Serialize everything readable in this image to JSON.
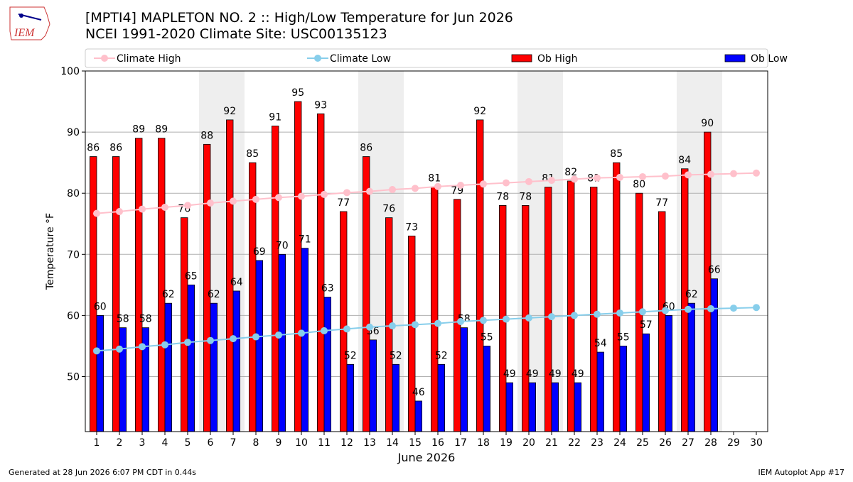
{
  "chart_data": {
    "type": "bar_line",
    "title": "[MPTI4] MAPLETON NO. 2 :: High/Low Temperature for Jun 2026",
    "subtitle": "NCEI 1991-2020 Climate Site: USC00135123",
    "logo_text": "IEM",
    "x_label": "June 2026",
    "y_label": "Temperature °F",
    "footer_left": "Generated at 28 Jun 2026 6:07 PM CDT in 0.44s",
    "footer_right": "IEM Autoplot App #17",
    "x": [
      1,
      2,
      3,
      4,
      5,
      6,
      7,
      8,
      9,
      10,
      11,
      12,
      13,
      14,
      15,
      16,
      17,
      18,
      19,
      20,
      21,
      22,
      23,
      24,
      25,
      26,
      27,
      28,
      29,
      30
    ],
    "xlim": [
      0.5,
      30.5
    ],
    "xticks": [
      1,
      2,
      3,
      4,
      5,
      6,
      7,
      8,
      9,
      10,
      11,
      12,
      13,
      14,
      15,
      16,
      17,
      18,
      19,
      20,
      21,
      22,
      23,
      24,
      25,
      26,
      27,
      28,
      29,
      30
    ],
    "ylim": [
      41,
      100
    ],
    "yticks": [
      50,
      60,
      70,
      80,
      90,
      100
    ],
    "grid": true,
    "weekend_shading": [
      [
        6,
        7
      ],
      [
        13,
        14
      ],
      [
        20,
        21
      ],
      [
        27,
        28
      ]
    ],
    "series": [
      {
        "name": "Climate High",
        "kind": "line",
        "color": "#ffc0cb",
        "values": [
          76.7,
          77.0,
          77.4,
          77.7,
          78.0,
          78.4,
          78.7,
          79.0,
          79.3,
          79.5,
          79.8,
          80.1,
          80.3,
          80.6,
          80.8,
          81.1,
          81.3,
          81.5,
          81.7,
          81.9,
          82.1,
          82.3,
          82.5,
          82.6,
          82.7,
          82.8,
          83.0,
          83.1,
          83.2,
          83.3
        ]
      },
      {
        "name": "Climate Low",
        "kind": "line",
        "color": "#87ceeb",
        "values": [
          54.2,
          54.5,
          54.9,
          55.2,
          55.6,
          55.9,
          56.2,
          56.5,
          56.8,
          57.1,
          57.5,
          57.8,
          58.1,
          58.3,
          58.5,
          58.7,
          59.0,
          59.2,
          59.4,
          59.6,
          59.8,
          60.0,
          60.2,
          60.4,
          60.6,
          60.8,
          61.0,
          61.1,
          61.2,
          61.3
        ]
      },
      {
        "name": "Ob High",
        "kind": "bar",
        "color": "#ff0000",
        "values": [
          86,
          86,
          89,
          89,
          76,
          88,
          92,
          85,
          91,
          95,
          93,
          77,
          86,
          76,
          73,
          81,
          79,
          92,
          78,
          78,
          81,
          82,
          81,
          85,
          80,
          77,
          84,
          90,
          null,
          null
        ]
      },
      {
        "name": "Ob Low",
        "kind": "bar",
        "color": "#0000ff",
        "values": [
          60,
          58,
          58,
          62,
          65,
          62,
          64,
          69,
          70,
          71,
          63,
          52,
          56,
          52,
          46,
          52,
          58,
          55,
          49,
          49,
          49,
          49,
          54,
          55,
          57,
          60,
          62,
          66,
          null,
          null
        ]
      }
    ]
  }
}
